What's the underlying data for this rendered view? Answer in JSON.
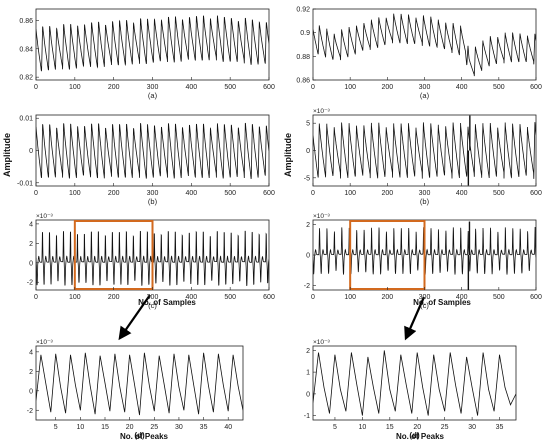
{
  "figure": {
    "amplitude_label": "Amplitude",
    "samples_label": "No. of Samples",
    "peaks_label": "No. of Peaks"
  },
  "chart_data": [
    {
      "id": "L1",
      "type": "line",
      "sublabel": "(a)",
      "exponent": "",
      "xlim": [
        0,
        600
      ],
      "ylim": [
        0.818,
        0.868
      ],
      "xticks": [
        0,
        100,
        200,
        300,
        400,
        500,
        600
      ],
      "xtick_labels": [
        "0",
        "100",
        "200",
        "300",
        "400",
        "500",
        "600"
      ],
      "yticks": [
        0.82,
        0.84,
        0.86
      ],
      "ytick_labels": [
        "0.82",
        "0.84",
        "0.86"
      ],
      "signal": {
        "kind": "ppg",
        "period": 18,
        "amp": 0.016,
        "phase": 0.2,
        "baseline": [
          [
            0,
            0.84
          ],
          [
            150,
            0.843
          ],
          [
            300,
            0.846
          ],
          [
            450,
            0.848
          ],
          [
            600,
            0.844
          ]
        ]
      }
    },
    {
      "id": "L2",
      "type": "line",
      "sublabel": "(b)",
      "exponent": "",
      "xlim": [
        0,
        600
      ],
      "ylim": [
        -0.011,
        0.011
      ],
      "xticks": [
        0,
        100,
        200,
        300,
        400,
        500,
        600
      ],
      "xtick_labels": [
        "0",
        "100",
        "200",
        "300",
        "400",
        "500",
        "600"
      ],
      "yticks": [
        -0.01,
        0,
        0.01
      ],
      "ytick_labels": [
        "-0.01",
        "0",
        "0.01"
      ],
      "signal": {
        "kind": "ppg",
        "period": 18,
        "amp": 0.0085,
        "phase": 0.2,
        "baseline": [
          [
            0,
            0
          ],
          [
            600,
            0
          ]
        ]
      }
    },
    {
      "id": "L3",
      "type": "line",
      "sublabel": "(c)",
      "exponent": "×10⁻³",
      "xlim": [
        0,
        600
      ],
      "ylim": [
        -2.8,
        4.4
      ],
      "xticks": [
        0,
        100,
        200,
        300,
        400,
        500,
        600
      ],
      "xtick_labels": [
        "0",
        "100",
        "200",
        "300",
        "400",
        "500",
        "600"
      ],
      "yticks": [
        -2,
        0,
        2,
        4
      ],
      "ytick_labels": [
        "-2",
        "0",
        "2",
        "4"
      ],
      "highlight": [
        100,
        300
      ],
      "signal": {
        "kind": "dppg",
        "period": 18,
        "amp": 3.2,
        "phase": 0.15,
        "baseline": [
          [
            0,
            0.4
          ],
          [
            600,
            0.4
          ]
        ]
      }
    },
    {
      "id": "L4",
      "type": "line",
      "sublabel": "(d)",
      "exponent": "×10⁻³",
      "xlim": [
        1,
        43
      ],
      "ylim": [
        -3.0,
        4.6
      ],
      "xticks": [
        5,
        10,
        15,
        20,
        25,
        30,
        35,
        40
      ],
      "xtick_labels": [
        "5",
        "10",
        "15",
        "20",
        "25",
        "30",
        "35",
        "40"
      ],
      "yticks": [
        -2,
        0,
        2,
        4
      ],
      "ytick_labels": [
        "-2",
        "0",
        "2",
        "4"
      ],
      "points": [
        -1.0,
        3.7,
        0.7,
        -2.2,
        3.8,
        0.4,
        -2.3,
        3.7,
        0.6,
        -2.0,
        3.9,
        0.5,
        -2.4,
        3.6,
        0.8,
        -2.1,
        3.8,
        0.4,
        -2.2,
        3.7,
        0.6,
        -2.5,
        3.9,
        0.5,
        -2.1,
        3.6,
        0.7,
        -2.3,
        3.8,
        0.4,
        -2.0,
        3.7,
        0.6,
        -2.4,
        3.9,
        0.5,
        -2.2,
        3.8,
        0.6,
        -2.1,
        3.7,
        0.5,
        -2.0
      ]
    },
    {
      "id": "R1",
      "type": "line",
      "sublabel": "(a)",
      "exponent": "",
      "xlim": [
        0,
        600
      ],
      "ylim": [
        0.86,
        0.92
      ],
      "xticks": [
        0,
        100,
        200,
        300,
        400,
        500,
        600
      ],
      "xtick_labels": [
        "0",
        "100",
        "200",
        "300",
        "400",
        "500",
        "600"
      ],
      "yticks": [
        0.86,
        0.88,
        0.9,
        0.92
      ],
      "ytick_labels": [
        "0.86",
        "0.88",
        "0.9",
        "0.92"
      ],
      "signal": {
        "kind": "ppg",
        "period": 20,
        "amp": 0.012,
        "phase": 0.3,
        "baseline": [
          [
            0,
            0.896
          ],
          [
            60,
            0.888
          ],
          [
            130,
            0.896
          ],
          [
            220,
            0.904
          ],
          [
            320,
            0.901
          ],
          [
            410,
            0.892
          ],
          [
            420,
            0.872
          ],
          [
            470,
            0.884
          ],
          [
            530,
            0.888
          ],
          [
            600,
            0.886
          ]
        ]
      }
    },
    {
      "id": "R2",
      "type": "line",
      "sublabel": "(b)",
      "exponent": "×10⁻³",
      "xlim": [
        0,
        600
      ],
      "ylim": [
        -6.5,
        6.5
      ],
      "xticks": [
        0,
        100,
        200,
        300,
        400,
        500,
        600
      ],
      "xtick_labels": [
        "0",
        "100",
        "200",
        "300",
        "400",
        "500",
        "600"
      ],
      "yticks": [
        -5,
        0,
        5
      ],
      "ytick_labels": [
        "-5",
        "0",
        "5"
      ],
      "signal": {
        "kind": "ppg",
        "period": 20,
        "amp": 4.8,
        "phase": 0.3,
        "baseline": [
          [
            0,
            0
          ],
          [
            600,
            0
          ]
        ]
      },
      "spikes": [
        [
          418,
          -6.4
        ],
        [
          422,
          6.4
        ]
      ]
    },
    {
      "id": "R3",
      "type": "line",
      "sublabel": "(c)",
      "exponent": "×10⁻³",
      "xlim": [
        0,
        600
      ],
      "ylim": [
        -2.3,
        2.3
      ],
      "xticks": [
        0,
        100,
        200,
        300,
        400,
        500,
        600
      ],
      "xtick_labels": [
        "0",
        "100",
        "200",
        "300",
        "400",
        "500",
        "600"
      ],
      "yticks": [
        -2,
        0,
        2
      ],
      "ytick_labels": [
        "-2",
        "0",
        "2"
      ],
      "highlight": [
        100,
        300
      ],
      "signal": {
        "kind": "dppg",
        "period": 20,
        "amp": 1.7,
        "phase": 0.2,
        "baseline": [
          [
            0,
            0.2
          ],
          [
            600,
            0.2
          ]
        ]
      },
      "spikes": [
        [
          418,
          -2.3
        ],
        [
          421,
          2.2
        ]
      ]
    },
    {
      "id": "R4",
      "type": "line",
      "sublabel": "(d)",
      "exponent": "×10⁻³",
      "xlim": [
        1,
        38
      ],
      "ylim": [
        -1.2,
        2.2
      ],
      "xticks": [
        5,
        10,
        15,
        20,
        25,
        30,
        35
      ],
      "xtick_labels": [
        "5",
        "10",
        "15",
        "20",
        "25",
        "30",
        "35"
      ],
      "yticks": [
        -1,
        0,
        1,
        2
      ],
      "ytick_labels": [
        "-1",
        "0",
        "1",
        "2"
      ],
      "points": [
        -0.4,
        1.9,
        0.3,
        -0.9,
        1.8,
        0.2,
        -0.8,
        1.9,
        0.4,
        -1.0,
        1.7,
        0.3,
        -0.9,
        2.0,
        0.2,
        -0.8,
        1.8,
        0.4,
        -0.9,
        1.9,
        0.3,
        -1.0,
        1.8,
        0.2,
        -0.8,
        1.9,
        0.4,
        -0.9,
        1.7,
        0.3,
        -1.0,
        1.9,
        0.2,
        -0.8,
        1.8,
        0.3,
        -0.5,
        0.0
      ]
    }
  ]
}
